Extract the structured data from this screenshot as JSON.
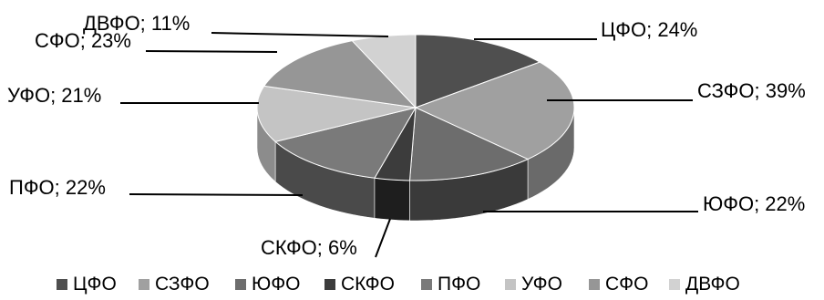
{
  "chart_data": {
    "type": "pie",
    "style": "3d",
    "categories": [
      "ЦФО",
      "СЗФО",
      "ЮФО",
      "СКФО",
      "ПФО",
      "УФО",
      "СФО",
      "ДВФО"
    ],
    "values": [
      24,
      39,
      22,
      6,
      22,
      21,
      23,
      11
    ],
    "data_labels": [
      "ЦФО; 24%",
      "СЗФО; 39%",
      "ЮФО; 22%",
      "СКФО; 6%",
      "ПФО; 22%",
      "УФО; 21%",
      "СФО; 23%",
      "ДВФО; 11%"
    ],
    "colors": [
      "#4f4f4f",
      "#a0a0a0",
      "#6d6d6d",
      "#3c3c3c",
      "#7a7a7a",
      "#c4c4c4",
      "#969696",
      "#d2d2d2"
    ],
    "side_colors": [
      "#2e2e2e",
      "#6a6a6a",
      "#3a3a3a",
      "#1e1e1e",
      "#4a4a4a",
      "#8c8c8c",
      "#5c5c5c",
      "#9c9c9c"
    ],
    "legend": {
      "position": "bottom",
      "entries": [
        "ЦФО",
        "СЗФО",
        "ЮФО",
        "СКФО",
        "ПФО",
        "УФО",
        "СФО",
        "ДВФО"
      ]
    }
  }
}
